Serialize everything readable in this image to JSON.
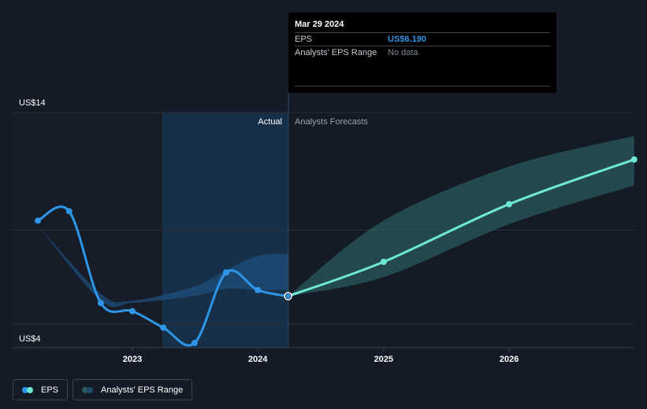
{
  "chart_data": {
    "type": "line",
    "y_axis": {
      "labels": [
        "US$14",
        "US$4"
      ],
      "ylim": [
        4,
        14
      ]
    },
    "x_axis": {
      "ticks": [
        "2023",
        "2024",
        "2025",
        "2026"
      ]
    },
    "region_labels": {
      "actual": "Actual",
      "forecast": "Analysts Forecasts"
    },
    "series": [
      {
        "name": "EPS",
        "color": "#2f95e6",
        "points": [
          {
            "x": "2022-04-01",
            "y": 9.4
          },
          {
            "x": "2022-07-01",
            "y": 9.8
          },
          {
            "x": "2022-10-01",
            "y": 5.9
          },
          {
            "x": "2023-01-01",
            "y": 5.55
          },
          {
            "x": "2023-04-01",
            "y": 4.85
          },
          {
            "x": "2023-07-01",
            "y": 4.2
          },
          {
            "x": "2023-10-01",
            "y": 7.2
          },
          {
            "x": "2024-01-01",
            "y": 6.45
          },
          {
            "x": "2024-03-29",
            "y": 6.19
          }
        ]
      },
      {
        "name": "EPS forecast",
        "color": "#6ee7d5",
        "points": [
          {
            "x": "2024-03-29",
            "y": 6.19
          },
          {
            "x": "2025-01-01",
            "y": 7.65
          },
          {
            "x": "2026-01-01",
            "y": 10.1
          },
          {
            "x": "2026-12-31",
            "y": 12.0
          }
        ]
      },
      {
        "name": "Analysts' EPS Range",
        "color": "#2a5a5a",
        "points": [
          {
            "x": "2024-03-29",
            "y_low": 6.19,
            "y_high": 6.19
          },
          {
            "x": "2025-01-01",
            "y_low": 7.0,
            "y_high": 9.4
          },
          {
            "x": "2026-01-01",
            "y_low": 9.25,
            "y_high": 11.7
          },
          {
            "x": "2026-12-31",
            "y_low": 10.9,
            "y_high": 13.0
          }
        ]
      }
    ],
    "past_range_band": {
      "points": [
        {
          "x": "2022-04-01",
          "y_low": 9.2,
          "y_high": 9.2
        },
        {
          "x": "2022-10-01",
          "y_low": 6.0,
          "y_high": 6.3
        },
        {
          "x": "2023-01-01",
          "y_low": 5.9,
          "y_high": 6.0
        },
        {
          "x": "2023-07-01",
          "y_low": 6.2,
          "y_high": 6.6
        },
        {
          "x": "2023-10-01",
          "y_low": 6.5,
          "y_high": 7.3
        },
        {
          "x": "2024-01-01",
          "y_low": 6.45,
          "y_high": 7.9
        },
        {
          "x": "2024-03-29",
          "y_low": 6.45,
          "y_high": 8.0
        }
      ]
    }
  },
  "tooltip": {
    "date": "Mar 29 2024",
    "rows": [
      {
        "label": "EPS",
        "value": "US$6.190"
      },
      {
        "label": "Analysts' EPS Range",
        "value": "No data"
      }
    ]
  },
  "legend": [
    {
      "label": "EPS",
      "colors": [
        "#2f95e6",
        "#6ee7d5"
      ]
    },
    {
      "label": "Analysts' EPS Range",
      "colors": [
        "#2a5a5a",
        "#1e4a6a"
      ]
    }
  ]
}
